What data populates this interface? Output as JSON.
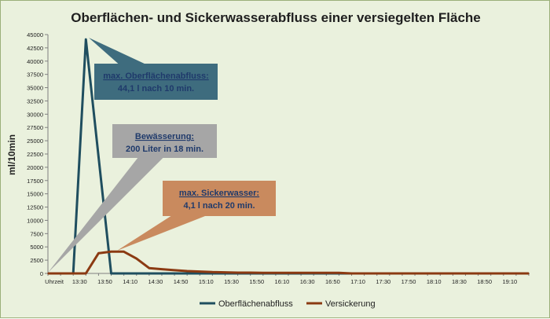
{
  "chart_data": {
    "type": "line",
    "title": "Oberflächen- und Sickerwasserabfluss einer versiegelten Fläche",
    "ylabel": "ml/10min",
    "xlabel": "",
    "ylim": [
      0,
      45000
    ],
    "yticks": [
      0,
      2500,
      5000,
      7500,
      10000,
      12500,
      15000,
      17500,
      20000,
      22500,
      25000,
      27500,
      30000,
      32500,
      35000,
      37500,
      40000,
      42500,
      45000
    ],
    "x_tick_labels": [
      "Uhrzeit",
      "13:30",
      "13:50",
      "14:10",
      "14:30",
      "14:50",
      "15:10",
      "15:30",
      "15:50",
      "16:10",
      "16:30",
      "16:50",
      "17:10",
      "17:30",
      "17:50",
      "18:10",
      "18:30",
      "18:50",
      "19:10"
    ],
    "x": [
      "13:00",
      "13:10",
      "13:20",
      "13:30",
      "13:40",
      "13:50",
      "14:00",
      "14:10",
      "14:20",
      "14:30",
      "14:40",
      "14:50",
      "15:00",
      "15:10",
      "15:20",
      "15:30",
      "15:40",
      "15:50",
      "16:00",
      "16:10",
      "16:20",
      "16:30",
      "16:40",
      "16:50",
      "17:00",
      "17:10",
      "17:20",
      "17:30",
      "17:40",
      "17:50",
      "18:00",
      "18:10",
      "18:20",
      "18:30",
      "18:40",
      "18:50",
      "19:00",
      "19:10",
      "19:20"
    ],
    "series": [
      {
        "name": "Oberflächenabfluss",
        "color": "#1f4e5f",
        "values": [
          0,
          0,
          0,
          44100,
          22000,
          0,
          0,
          0,
          0,
          0,
          0,
          0,
          0,
          0,
          0,
          0,
          0,
          0,
          0,
          0,
          0,
          0,
          0,
          0,
          0,
          0,
          0,
          0,
          0,
          0,
          0,
          0,
          0,
          0,
          0,
          0,
          0,
          0,
          0
        ]
      },
      {
        "name": "Versickerung",
        "color": "#8b3a12",
        "values": [
          0,
          0,
          0,
          0,
          3800,
          4100,
          4100,
          2800,
          1000,
          800,
          600,
          450,
          350,
          250,
          200,
          150,
          150,
          100,
          100,
          100,
          100,
          100,
          100,
          100,
          0,
          0,
          0,
          0,
          0,
          0,
          0,
          0,
          0,
          0,
          0,
          0,
          0,
          0,
          0
        ]
      }
    ],
    "grid": false,
    "legend_position": "bottom",
    "callouts": [
      {
        "title": "max. Oberflächenabfluss:",
        "text": "44,1 l nach 10 min.",
        "fill": "#3e6c7e",
        "text_color": "#1f3a6b"
      },
      {
        "title": "Bewässerung:",
        "text": "200 Liter in 18  min.",
        "fill": "#a6a6a6",
        "text_color": "#1f3a6b"
      },
      {
        "title": "max. Sickerwasser:",
        "text": "4,1 l nach 20 min.",
        "fill": "#c98a5e",
        "text_color": "#1f3a6b"
      }
    ]
  }
}
